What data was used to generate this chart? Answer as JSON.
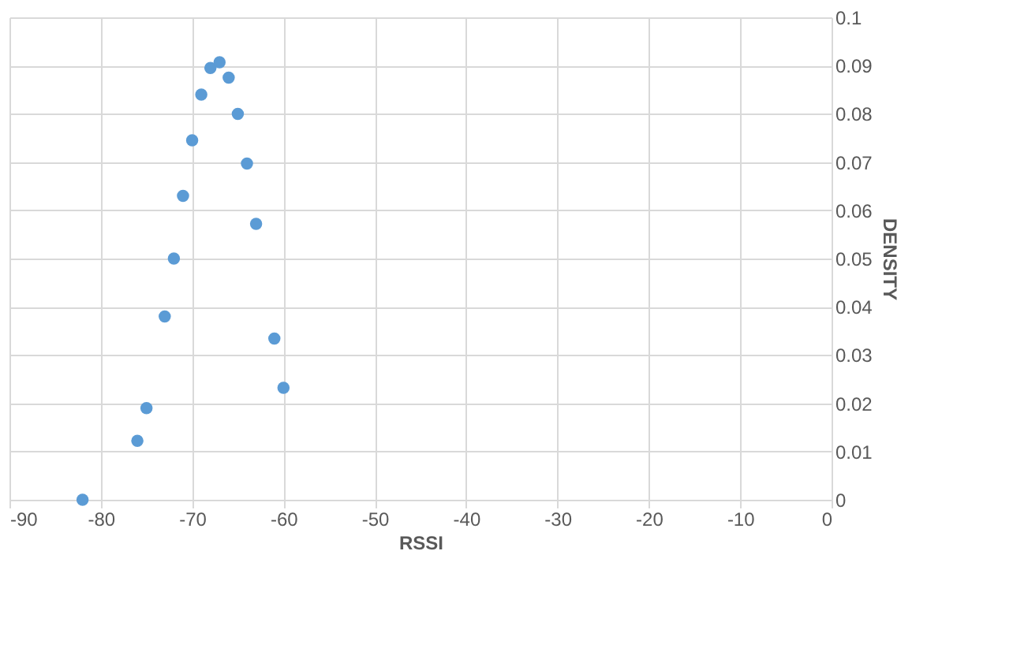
{
  "chart_data": {
    "type": "scatter",
    "xlabel": "RSSI",
    "ylabel": "DENSITY",
    "x": [
      -82,
      -76,
      -75,
      -73,
      -72,
      -71,
      -70,
      -69,
      -68,
      -67,
      -66,
      -65,
      -64,
      -63,
      -61,
      -60
    ],
    "series": [
      {
        "color": "#5b9bd5",
        "values": [
          0.0,
          0.0122,
          0.019,
          0.038,
          0.05,
          0.063,
          0.0745,
          0.084,
          0.0895,
          0.0907,
          0.0875,
          0.08,
          0.0697,
          0.0572,
          0.0334,
          0.0232
        ]
      }
    ],
    "xlim": [
      -90,
      0
    ],
    "xticks": [
      -90,
      -80,
      -70,
      -60,
      -50,
      -40,
      -30,
      -20,
      -10,
      0
    ],
    "ylim": [
      0,
      0.1
    ],
    "yticks": [
      0,
      0.01,
      0.02,
      0.03,
      0.04,
      0.05,
      0.06,
      0.07,
      0.08,
      0.09,
      0.1
    ],
    "grid": true,
    "marker": "circle"
  }
}
